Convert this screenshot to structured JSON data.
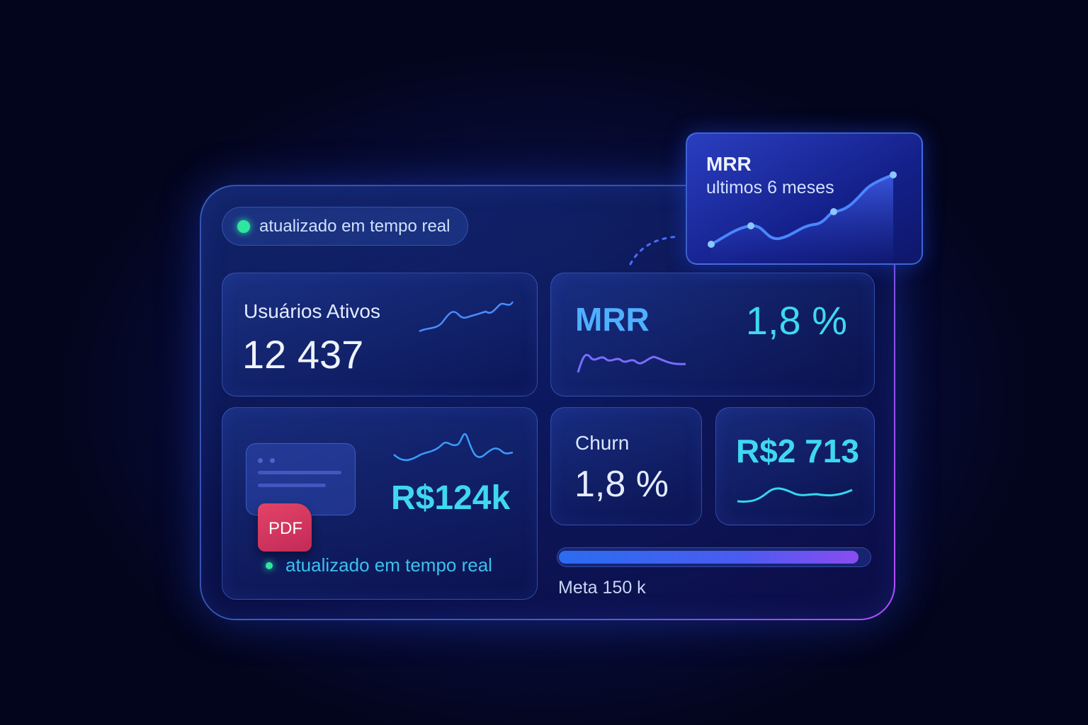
{
  "status_pill": {
    "label": "atualizado em tempo real"
  },
  "active_users": {
    "label": "Usuários Ativos",
    "value": "12 437"
  },
  "mrr_card": {
    "label": "MRR",
    "value": "1,8 %"
  },
  "revenue_card": {
    "file_badge": "PDF",
    "value": "R$124k",
    "status": "atualizado em tempo real"
  },
  "churn_card": {
    "label": "Churn",
    "value": "1,8 %"
  },
  "ticket_card": {
    "value": "R$2 713"
  },
  "goal": {
    "label": "Meta 150 k",
    "progress_fraction": 0.97
  },
  "mrr_popup": {
    "title": "MRR",
    "subtitle": "ultimos 6 meses"
  },
  "colors": {
    "accent_cyan": "#3fd8f0",
    "accent_blue": "#3a6cff",
    "accent_purple": "#b04cff",
    "live_green": "#2ee6a0",
    "pdf_red": "#d6345e"
  }
}
